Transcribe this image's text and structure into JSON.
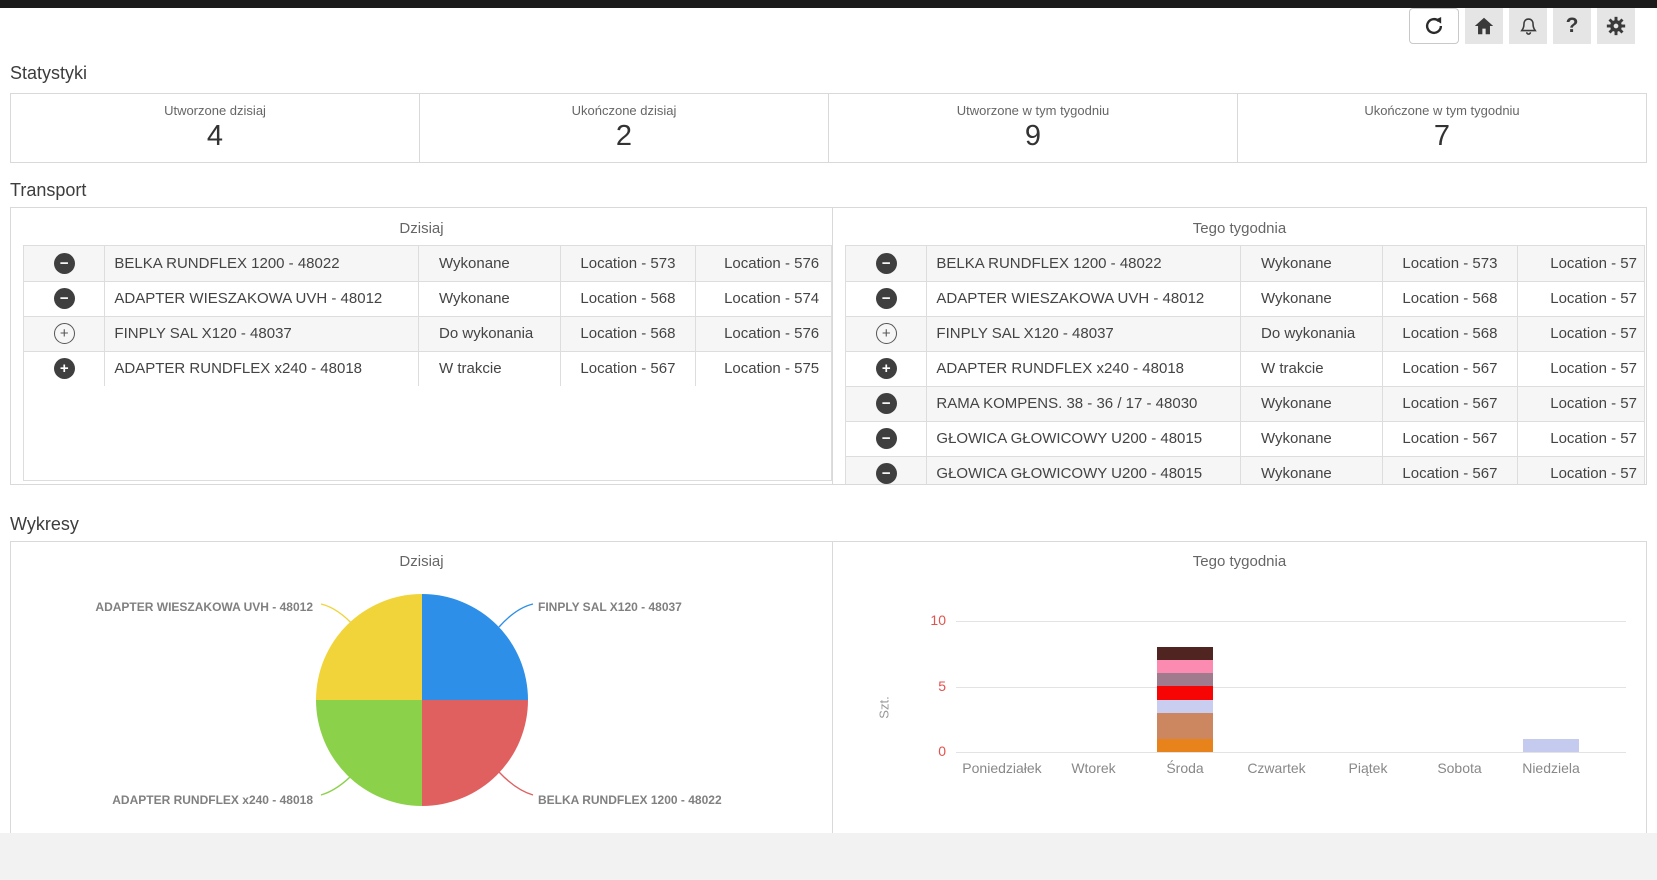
{
  "topbar": {
    "buttons": [
      {
        "name": "refresh",
        "icon": "refresh-icon"
      },
      {
        "name": "home",
        "icon": "home-icon"
      },
      {
        "name": "notifications",
        "icon": "bell-icon"
      },
      {
        "name": "help",
        "icon": "question-icon",
        "glyph": "?"
      },
      {
        "name": "settings",
        "icon": "gear-icon"
      }
    ]
  },
  "stats": {
    "heading": "Statystyki",
    "cards": [
      {
        "label": "Utworzone dzisiaj",
        "value": "4"
      },
      {
        "label": "Ukończone dzisiaj",
        "value": "2"
      },
      {
        "label": "Utworzone w tym tygodniu",
        "value": "9"
      },
      {
        "label": "Ukończone w tym tygodniu",
        "value": "7"
      }
    ]
  },
  "transport": {
    "heading": "Transport",
    "tables": [
      {
        "title": "Dzisiaj",
        "rows": [
          {
            "icon": "minus-filled",
            "name": "BELKA RUNDFLEX 1200 - 48022",
            "status": "Wykonane",
            "locations": [
              "Location - 573",
              "Location - 576"
            ]
          },
          {
            "icon": "minus-filled",
            "name": "ADAPTER WIESZAKOWA UVH - 48012",
            "status": "Wykonane",
            "locations": [
              "Location - 568",
              "Location - 574"
            ]
          },
          {
            "icon": "plus-outline",
            "name": "FINPLY SAL X120 - 48037",
            "status": "Do wykonania",
            "locations": [
              "Location - 568",
              "Location - 576"
            ]
          },
          {
            "icon": "plus-filled",
            "name": "ADAPTER RUNDFLEX x240 - 48018",
            "status": "W trakcie",
            "locations": [
              "Location - 567",
              "Location - 575"
            ]
          }
        ]
      },
      {
        "title": "Tego tygodnia",
        "rows": [
          {
            "icon": "minus-filled",
            "name": "BELKA RUNDFLEX 1200 - 48022",
            "status": "Wykonane",
            "locations": [
              "Location - 573",
              "Location - 57"
            ]
          },
          {
            "icon": "minus-filled",
            "name": "ADAPTER WIESZAKOWA UVH - 48012",
            "status": "Wykonane",
            "locations": [
              "Location - 568",
              "Location - 57"
            ]
          },
          {
            "icon": "plus-outline",
            "name": "FINPLY SAL X120 - 48037",
            "status": "Do wykonania",
            "locations": [
              "Location - 568",
              "Location - 57"
            ]
          },
          {
            "icon": "plus-filled",
            "name": "ADAPTER RUNDFLEX x240 - 48018",
            "status": "W trakcie",
            "locations": [
              "Location - 567",
              "Location - 57"
            ]
          },
          {
            "icon": "minus-filled",
            "name": "RAMA KOMPENS. 38 - 36 / 17 - 48030",
            "status": "Wykonane",
            "locations": [
              "Location - 567",
              "Location - 57"
            ]
          },
          {
            "icon": "minus-filled",
            "name": "GŁOWICA GŁOWICOWY U200 - 48015",
            "status": "Wykonane",
            "locations": [
              "Location - 567",
              "Location - 57"
            ]
          },
          {
            "icon": "minus-filled",
            "name": "GŁOWICA GŁOWICOWY U200 - 48015",
            "status": "Wykonane",
            "locations": [
              "Location - 567",
              "Location - 57"
            ]
          }
        ]
      }
    ]
  },
  "charts": {
    "heading": "Wykresy"
  },
  "chart_data": [
    {
      "type": "pie",
      "title": "Dzisiaj",
      "slices": [
        {
          "label": "FINPLY SAL X120 - 48037",
          "value": 1,
          "color": "#2d8fe8",
          "label_pos": "top-right"
        },
        {
          "label": "BELKA RUNDFLEX 1200 - 48022",
          "value": 1,
          "color": "#e06060",
          "label_pos": "bottom-right"
        },
        {
          "label": "ADAPTER RUNDFLEX x240 - 48018",
          "value": 1,
          "color": "#8cd14a",
          "label_pos": "bottom-left"
        },
        {
          "label": "ADAPTER WIESZAKOWA UVH - 48012",
          "value": 1,
          "color": "#f0d43a",
          "label_pos": "top-left"
        }
      ],
      "start_angle_deg": 0,
      "clockwise": true,
      "legend": "outside-labels-with-leader-lines"
    },
    {
      "type": "bar",
      "stacked": true,
      "title": "Tego tygodnia",
      "xlabel": "",
      "ylabel": "Szt.",
      "ylim": [
        0,
        10
      ],
      "yticks": [
        0,
        5,
        10
      ],
      "ytick_color": "#e2524e",
      "grid": true,
      "categories": [
        "Poniedziałek",
        "Wtorek",
        "Środa",
        "Czwartek",
        "Piątek",
        "Sobota",
        "Niedziela"
      ],
      "bars": [
        {
          "category": "Środa",
          "total": 8,
          "segments_bottom_to_top": [
            {
              "value": 1,
              "color": "#e8821b"
            },
            {
              "value": 2,
              "color": "#cd8760"
            },
            {
              "value": 1,
              "color": "#c9cdf0"
            },
            {
              "value": 1,
              "color": "#f70505"
            },
            {
              "value": 1,
              "color": "#a07b8e"
            },
            {
              "value": 1,
              "color": "#fc8bb1"
            },
            {
              "value": 1,
              "color": "#4f2421"
            }
          ]
        },
        {
          "category": "Niedziela",
          "total": 1,
          "segments_bottom_to_top": [
            {
              "value": 1,
              "color": "#c5cbee"
            }
          ]
        }
      ]
    }
  ]
}
